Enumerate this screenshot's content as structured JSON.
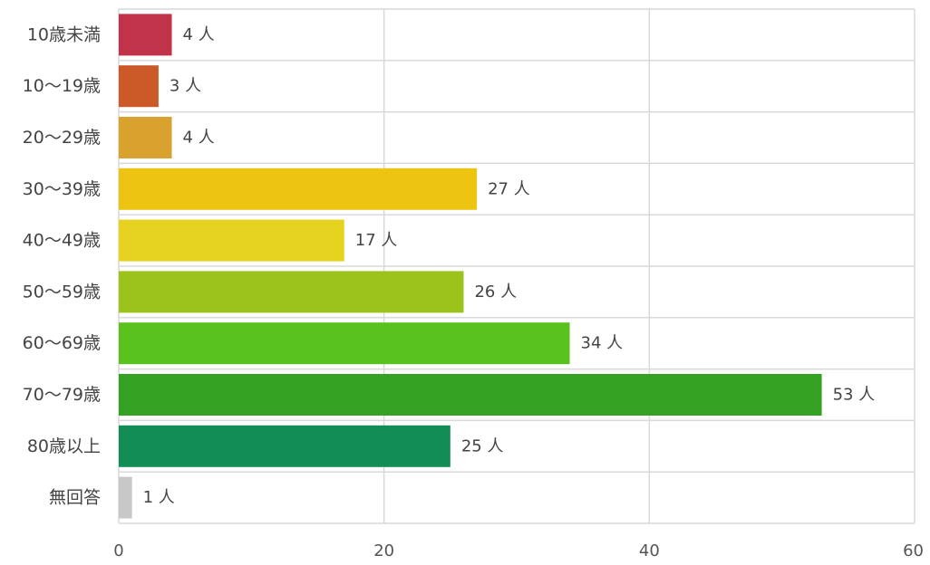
{
  "chart_data": {
    "type": "bar",
    "orientation": "horizontal",
    "categories": [
      "10歳未満",
      "10〜19歳",
      "20〜29歳",
      "30〜39歳",
      "40〜49歳",
      "50〜59歳",
      "60〜69歳",
      "70〜79歳",
      "80歳以上",
      "無回答"
    ],
    "values": [
      4,
      3,
      4,
      27,
      17,
      26,
      34,
      53,
      25,
      1
    ],
    "value_suffix": " 人",
    "colors": [
      "#c03348",
      "#cc5928",
      "#d9a12e",
      "#eec413",
      "#e6d320",
      "#9cc21c",
      "#5ac21e",
      "#35a122",
      "#128d55",
      "#c8c8c8"
    ],
    "xlim": [
      0,
      60
    ],
    "xticks": [
      0,
      20,
      40,
      60
    ],
    "grid": true,
    "title": "",
    "xlabel": "",
    "ylabel": ""
  }
}
